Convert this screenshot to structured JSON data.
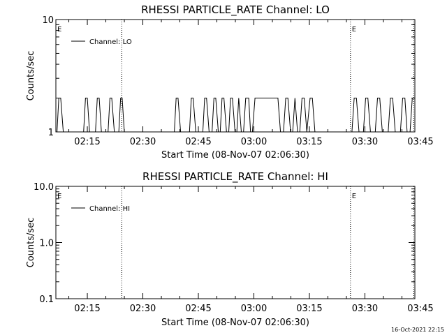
{
  "chart_data": [
    {
      "type": "line",
      "title": "RHESSI PARTICLE_RATE Channel: LO",
      "xlabel": "Start Time (08-Nov-07 02:06:30)",
      "ylabel": "Counts/sec",
      "y_scale": "log",
      "ylim": [
        1,
        10
      ],
      "y_ticks": [
        "1",
        "10"
      ],
      "x_tick_labels": [
        "02:15",
        "02:30",
        "02:45",
        "03:00",
        "03:15",
        "03:30",
        "03:45"
      ],
      "x_tick_values": [
        15,
        30,
        45,
        60,
        75,
        90,
        105
      ],
      "xlim_minutes": [
        6.5,
        103.5
      ],
      "grid": false,
      "legend": {
        "position": "top-left",
        "entries": [
          "Channel: LO"
        ]
      },
      "markers": [
        {
          "label": "E",
          "x": 6.5
        },
        {
          "label": "",
          "x": 24.3
        },
        {
          "label": "E",
          "x": 86.1
        },
        {
          "label": "",
          "x": 103.2
        }
      ],
      "series": [
        {
          "name": "Channel: LO",
          "x": [
            6.8,
            7.3,
            7.8,
            8.5,
            14.0,
            14.5,
            15.0,
            15.6,
            17.2,
            17.7,
            18.2,
            18.8,
            20.6,
            21.1,
            21.6,
            22.3,
            23.5,
            24.0,
            24.4,
            25.0,
            38.5,
            39.0,
            39.5,
            40.2,
            42.6,
            43.1,
            43.6,
            44.3,
            46.2,
            46.7,
            47.2,
            47.9,
            48.7,
            49.2,
            49.7,
            50.4,
            50.9,
            51.4,
            51.9,
            52.6,
            53.2,
            53.7,
            54.2,
            54.9,
            55.4,
            55.9,
            56.6,
            57.2,
            57.8,
            58.6,
            59.1,
            59.6,
            60.3,
            66.0,
            66.5,
            67.2,
            68.0,
            68.6,
            69.2,
            69.9,
            70.5,
            71.1,
            71.8,
            72.4,
            73.0,
            73.6,
            74.3,
            75.2,
            75.8,
            76.5,
            86.5,
            87.1,
            87.7,
            88.4,
            89.6,
            90.2,
            90.8,
            91.5,
            92.8,
            93.4,
            94.0,
            94.7,
            96.3,
            96.9,
            97.5,
            98.2,
            99.6,
            100.2,
            100.8,
            101.4,
            102.2,
            102.8,
            103.3
          ],
          "y": [
            1,
            2,
            2,
            1,
            1,
            2,
            2,
            1,
            1,
            2,
            2,
            1,
            1,
            2,
            2,
            1,
            1,
            2,
            2,
            1,
            1,
            2,
            2,
            1,
            1,
            2,
            2,
            1,
            1,
            2,
            2,
            1,
            1,
            2,
            2,
            1,
            1,
            2,
            2,
            1,
            1,
            2,
            2,
            1,
            1,
            2,
            1,
            1,
            2,
            2,
            1,
            1,
            2,
            2,
            2,
            1,
            1,
            2,
            2,
            1,
            1,
            2,
            1,
            1,
            2,
            2,
            1,
            2,
            2,
            1,
            1,
            2,
            2,
            1,
            1,
            2,
            2,
            1,
            1,
            2,
            2,
            1,
            1,
            2,
            2,
            1,
            1,
            2,
            2,
            1,
            1,
            2,
            2
          ]
        }
      ]
    },
    {
      "type": "line",
      "title": "RHESSI PARTICLE_RATE Channel: HI",
      "xlabel": "Start Time (08-Nov-07 02:06:30)",
      "ylabel": "Counts/sec",
      "y_scale": "log",
      "ylim": [
        0.1,
        10
      ],
      "y_ticks": [
        "0.1",
        "1.0",
        "10.0"
      ],
      "x_tick_labels": [
        "02:15",
        "02:30",
        "02:45",
        "03:00",
        "03:15",
        "03:30",
        "03:45"
      ],
      "x_tick_values": [
        15,
        30,
        45,
        60,
        75,
        90,
        105
      ],
      "xlim_minutes": [
        6.5,
        103.5
      ],
      "grid": false,
      "legend": {
        "position": "top-left",
        "entries": [
          "Channel: HI"
        ]
      },
      "markers": [
        {
          "label": "E",
          "x": 6.5
        },
        {
          "label": "",
          "x": 24.3
        },
        {
          "label": "E",
          "x": 86.1
        },
        {
          "label": "",
          "x": 103.2
        }
      ],
      "series": [
        {
          "name": "Channel: HI",
          "x": [],
          "y": []
        }
      ]
    }
  ],
  "footer": {
    "timestamp": "16-Oct-2021 22:15"
  }
}
